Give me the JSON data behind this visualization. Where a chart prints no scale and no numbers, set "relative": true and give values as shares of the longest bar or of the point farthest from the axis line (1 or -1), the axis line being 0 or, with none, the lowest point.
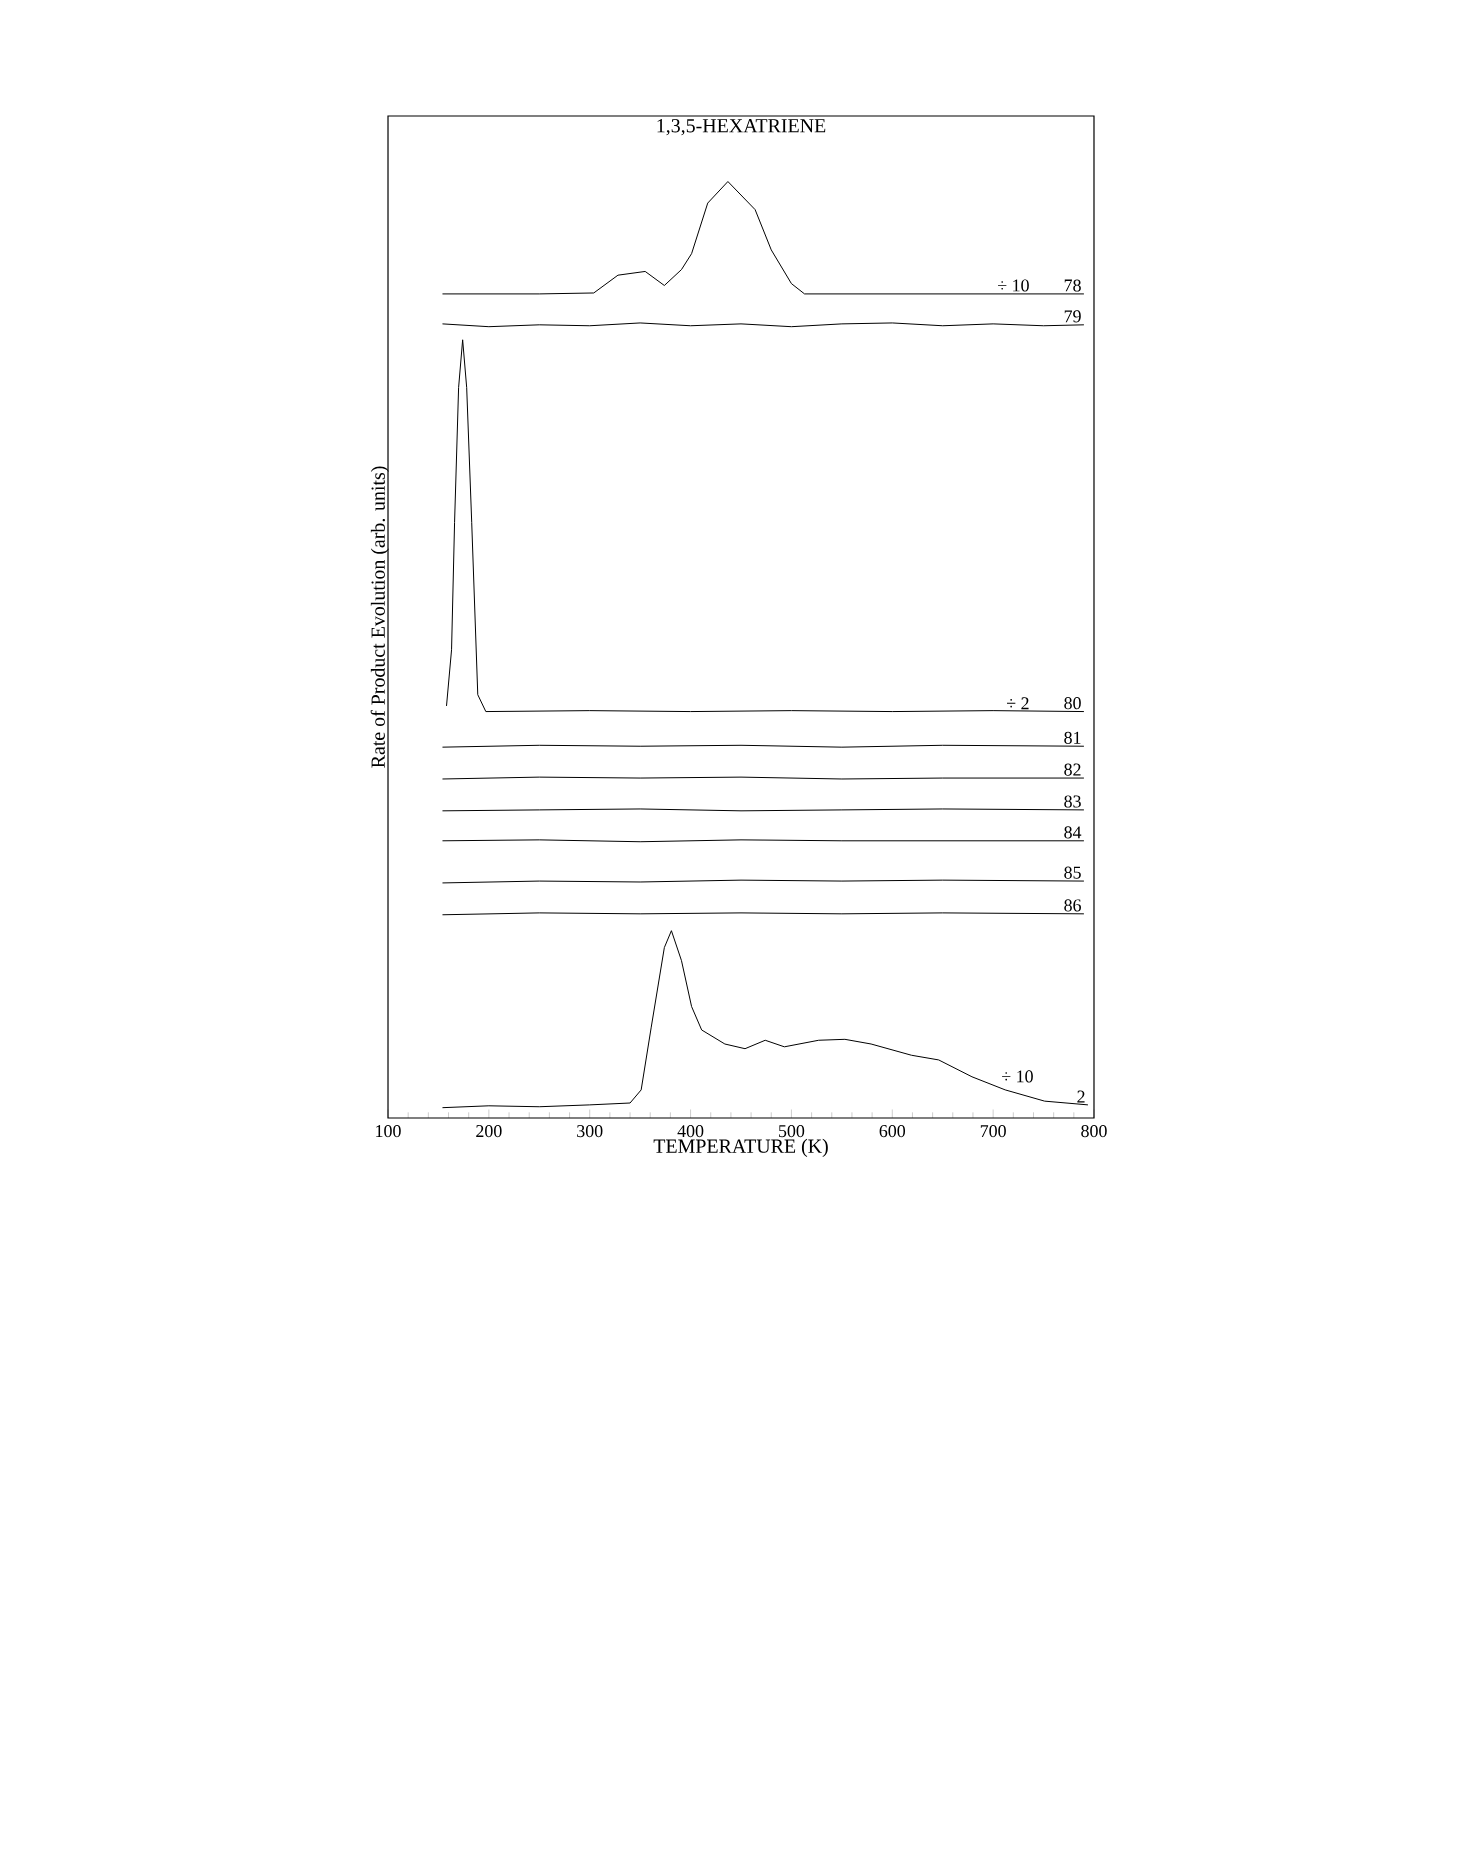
{
  "chart_data": {
    "type": "line",
    "title": "1,3,5-HEXATRIENE",
    "xlabel": "TEMPERATURE (K)",
    "ylabel": "Rate of Product Evolution (arb. units)",
    "relative": true,
    "xlim": [
      100,
      800
    ],
    "xticks": [
      100,
      200,
      300,
      400,
      500,
      600,
      700,
      800
    ],
    "series": [
      {
        "name": "78",
        "color": "#000000",
        "x": [
          154,
          250,
          304,
          328,
          355,
          374,
          391,
          401,
          417,
          437,
          464,
          480,
          500,
          513,
          600,
          700,
          790
        ],
        "values": [
          0.88,
          0.88,
          0.881,
          0.9,
          0.904,
          0.889,
          0.906,
          0.923,
          0.977,
          1.0,
          0.97,
          0.927,
          0.891,
          0.88,
          0.88,
          0.88,
          0.88
        ]
      },
      {
        "name": "79",
        "color": "#000000",
        "x": [
          154,
          200,
          250,
          300,
          350,
          400,
          450,
          500,
          550,
          600,
          650,
          700,
          750,
          790
        ],
        "values": [
          0.848,
          0.845,
          0.847,
          0.846,
          0.849,
          0.846,
          0.848,
          0.845,
          0.848,
          0.849,
          0.846,
          0.848,
          0.846,
          0.847
        ]
      },
      {
        "name": "80",
        "color": "#000000",
        "x": [
          158,
          163,
          166,
          170,
          174,
          178,
          183,
          189,
          197,
          300,
          400,
          500,
          600,
          700,
          790
        ],
        "values": [
          0.44,
          0.5,
          0.636,
          0.78,
          0.831,
          0.78,
          0.636,
          0.452,
          0.434,
          0.435,
          0.434,
          0.435,
          0.434,
          0.435,
          0.434
        ]
      },
      {
        "name": "81",
        "color": "#000000",
        "x": [
          154,
          250,
          350,
          450,
          550,
          650,
          790
        ],
        "values": [
          0.396,
          0.398,
          0.397,
          0.398,
          0.396,
          0.398,
          0.397
        ]
      },
      {
        "name": "82",
        "color": "#000000",
        "x": [
          154,
          250,
          350,
          450,
          550,
          650,
          790
        ],
        "values": [
          0.362,
          0.364,
          0.363,
          0.364,
          0.362,
          0.363,
          0.363
        ]
      },
      {
        "name": "83",
        "color": "#000000",
        "x": [
          154,
          250,
          350,
          450,
          550,
          650,
          790
        ],
        "values": [
          0.328,
          0.329,
          0.33,
          0.328,
          0.329,
          0.33,
          0.329
        ]
      },
      {
        "name": "84",
        "color": "#000000",
        "x": [
          154,
          250,
          350,
          450,
          550,
          650,
          790
        ],
        "values": [
          0.296,
          0.297,
          0.295,
          0.297,
          0.296,
          0.296,
          0.296
        ]
      },
      {
        "name": "85",
        "color": "#000000",
        "x": [
          154,
          250,
          350,
          450,
          550,
          650,
          790
        ],
        "values": [
          0.251,
          0.253,
          0.252,
          0.254,
          0.253,
          0.254,
          0.253
        ]
      },
      {
        "name": "86",
        "color": "#000000",
        "x": [
          154,
          250,
          350,
          450,
          550,
          650,
          790
        ],
        "values": [
          0.217,
          0.219,
          0.218,
          0.219,
          0.218,
          0.219,
          0.218
        ]
      },
      {
        "name": "2",
        "color": "#000000",
        "x": [
          154,
          200,
          250,
          300,
          340,
          351,
          361,
          374,
          381,
          391,
          401,
          411,
          434,
          454,
          474,
          493,
          527,
          553,
          579,
          619,
          646,
          679,
          712,
          751,
          794
        ],
        "values": [
          0.011,
          0.013,
          0.012,
          0.014,
          0.016,
          0.03,
          0.097,
          0.182,
          0.2,
          0.168,
          0.119,
          0.094,
          0.079,
          0.074,
          0.083,
          0.076,
          0.083,
          0.084,
          0.079,
          0.067,
          0.062,
          0.044,
          0.03,
          0.018,
          0.014
        ]
      }
    ],
    "annotations": [
      "÷ 10",
      "÷ 2",
      "÷ 10"
    ]
  }
}
